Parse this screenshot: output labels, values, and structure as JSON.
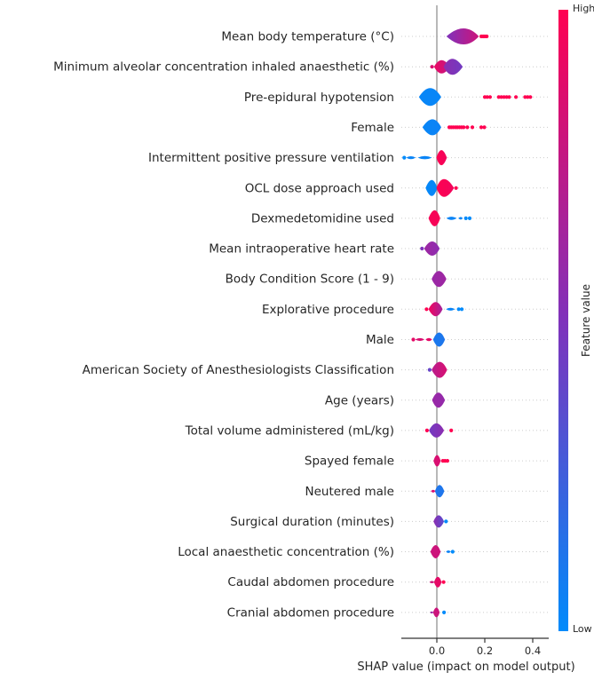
{
  "chart_data": {
    "type": "beeswarm",
    "title": "",
    "xlabel": "SHAP value (impact on model output)",
    "x_ticks": [
      0.0,
      0.2,
      0.4
    ],
    "x_tick_labels": [
      "0.0",
      "0.2",
      "0.4"
    ],
    "xlim": [
      -0.16,
      0.47
    ],
    "grid": "dotted-horizontal",
    "zero_line": true,
    "colorbar": {
      "label": "Feature value",
      "high_label": "High",
      "low_label": "Low",
      "high_color": "#ff0051",
      "mid_color": "#7f32bb",
      "low_color": "#008bfb"
    },
    "features": [
      {
        "label": "Mean body temperature (°C)",
        "segments": [
          {
            "x0": 0.04,
            "x1": 0.175,
            "peak": 0.115,
            "h": 9,
            "t0": 0.5,
            "t1": 0.8
          }
        ],
        "points": [
          {
            "x": 0.185,
            "t": 1
          },
          {
            "x": 0.193,
            "t": 1
          },
          {
            "x": 0.2,
            "t": 1
          },
          {
            "x": 0.208,
            "t": 1
          }
        ]
      },
      {
        "label": "Minimum alveolar concentration inhaled anaesthetic (%)",
        "segments": [
          {
            "x0": -0.012,
            "x1": 0.055,
            "peak": 0.018,
            "h": 7.5,
            "t0": 0.92,
            "t1": 0.75
          },
          {
            "x0": 0.028,
            "x1": 0.108,
            "peak": 0.062,
            "h": 9,
            "t0": 0.55,
            "t1": 0.45
          }
        ],
        "points": [
          {
            "x": -0.02,
            "t": 0.85
          }
        ]
      },
      {
        "label": "Pre-epidural hypotension",
        "segments": [
          {
            "x0": -0.075,
            "x1": 0.018,
            "peak": -0.027,
            "h": 10,
            "t0": 0.03,
            "t1": 0.03
          }
        ],
        "points": [
          {
            "x": 0.2,
            "t": 1
          },
          {
            "x": 0.21,
            "t": 1
          },
          {
            "x": 0.222,
            "t": 1
          },
          {
            "x": 0.258,
            "t": 1
          },
          {
            "x": 0.269,
            "t": 1
          },
          {
            "x": 0.28,
            "t": 1
          },
          {
            "x": 0.291,
            "t": 1
          },
          {
            "x": 0.302,
            "t": 1
          },
          {
            "x": 0.33,
            "t": 1
          },
          {
            "x": 0.368,
            "t": 1
          },
          {
            "x": 0.379,
            "t": 1
          },
          {
            "x": 0.39,
            "t": 1
          }
        ]
      },
      {
        "label": "Female",
        "segments": [
          {
            "x0": -0.06,
            "x1": 0.018,
            "peak": -0.016,
            "h": 9,
            "t0": 0.03,
            "t1": 0.05
          }
        ],
        "points": [
          {
            "x": 0.052,
            "t": 1
          },
          {
            "x": 0.06,
            "t": 1
          },
          {
            "x": 0.068,
            "t": 1
          },
          {
            "x": 0.077,
            "t": 1
          },
          {
            "x": 0.085,
            "t": 1
          },
          {
            "x": 0.094,
            "t": 1
          },
          {
            "x": 0.103,
            "t": 1
          },
          {
            "x": 0.112,
            "t": 1
          },
          {
            "x": 0.127,
            "t": 1
          },
          {
            "x": 0.148,
            "t": 1
          },
          {
            "x": 0.185,
            "t": 1
          },
          {
            "x": 0.198,
            "t": 1
          }
        ]
      },
      {
        "label": "Intermittent positive pressure ventilation",
        "segments": [
          {
            "x0": -0.002,
            "x1": 0.042,
            "peak": 0.018,
            "h": 8.5,
            "t0": 1,
            "t1": 0.95
          },
          {
            "x0": -0.128,
            "x1": -0.088,
            "peak": -0.108,
            "h": 1.6,
            "t0": 0.04,
            "t1": 0.04
          },
          {
            "x0": -0.08,
            "x1": -0.02,
            "peak": -0.05,
            "h": 1.8,
            "t0": 0.04,
            "t1": 0.04
          }
        ],
        "points": [
          {
            "x": -0.136,
            "t": 0
          }
        ]
      },
      {
        "label": "OCL dose approach used",
        "segments": [
          {
            "x0": -0.047,
            "x1": 0.002,
            "peak": -0.02,
            "h": 9,
            "t0": 0.02,
            "t1": 0.02
          },
          {
            "x0": -0.002,
            "x1": 0.072,
            "peak": 0.026,
            "h": 10,
            "t0": 1,
            "t1": 0.95
          }
        ],
        "points": [
          {
            "x": 0.08,
            "t": 1
          }
        ]
      },
      {
        "label": "Dexmedetomidine used",
        "segments": [
          {
            "x0": -0.035,
            "x1": 0.014,
            "peak": -0.008,
            "h": 9,
            "t0": 0.97,
            "t1": 0.97
          },
          {
            "x0": 0.04,
            "x1": 0.083,
            "peak": 0.06,
            "h": 1.8,
            "t0": 0.04,
            "t1": 0.04
          },
          {
            "x0": 0.09,
            "x1": 0.108,
            "peak": 0.1,
            "h": 1.5,
            "t0": 0.04,
            "t1": 0.04
          }
        ],
        "points": [
          {
            "x": 0.121,
            "t": 0
          },
          {
            "x": 0.137,
            "t": 0
          }
        ]
      },
      {
        "label": "Mean intraoperative heart rate",
        "segments": [
          {
            "x0": -0.053,
            "x1": 0.012,
            "peak": -0.018,
            "h": 8,
            "t0": 0.62,
            "t1": 0.55
          }
        ],
        "points": [
          {
            "x": -0.062,
            "t": 0.5
          }
        ]
      },
      {
        "label": "Body Condition Score (1 - 9)",
        "segments": [
          {
            "x0": -0.022,
            "x1": 0.04,
            "peak": 0.008,
            "h": 9,
            "t0": 0.6,
            "t1": 0.62
          }
        ],
        "points": []
      },
      {
        "label": "Explorative procedure",
        "segments": [
          {
            "x0": -0.035,
            "x1": 0.024,
            "peak": -0.004,
            "h": 8,
            "t0": 0.95,
            "t1": 0.65
          },
          {
            "x0": 0.038,
            "x1": 0.076,
            "peak": 0.056,
            "h": 1.6,
            "t0": 0.04,
            "t1": 0.04
          }
        ],
        "points": [
          {
            "x": 0.091,
            "t": 0
          },
          {
            "x": 0.104,
            "t": 0
          },
          {
            "x": -0.043,
            "t": 1
          }
        ]
      },
      {
        "label": "Male",
        "segments": [
          {
            "x0": -0.016,
            "x1": 0.034,
            "peak": 0.01,
            "h": 8,
            "t0": 0.1,
            "t1": 0.12
          },
          {
            "x0": -0.09,
            "x1": -0.052,
            "peak": -0.07,
            "h": 1.6,
            "t0": 0.85,
            "t1": 0.85
          },
          {
            "x0": -0.047,
            "x1": -0.02,
            "peak": -0.033,
            "h": 1.8,
            "t0": 0.9,
            "t1": 0.9
          }
        ],
        "points": [
          {
            "x": -0.098,
            "t": 0.9
          }
        ]
      },
      {
        "label": "American Society of Anesthesiologists Classification",
        "segments": [
          {
            "x0": -0.022,
            "x1": 0.043,
            "peak": 0.013,
            "h": 9,
            "t0": 0.72,
            "t1": 0.85
          }
        ],
        "points": [
          {
            "x": -0.03,
            "t": 0.4
          }
        ]
      },
      {
        "label": "Age (years)",
        "segments": [
          {
            "x0": -0.02,
            "x1": 0.034,
            "peak": 0.006,
            "h": 8.5,
            "t0": 0.6,
            "t1": 0.58
          }
        ],
        "points": []
      },
      {
        "label": "Total volume administered (mL/kg)",
        "segments": [
          {
            "x0": -0.033,
            "x1": 0.03,
            "peak": -0.002,
            "h": 8,
            "t0": 0.45,
            "t1": 0.55
          }
        ],
        "points": [
          {
            "x": 0.06,
            "t": 1
          },
          {
            "x": -0.041,
            "t": 1
          }
        ]
      },
      {
        "label": "Spayed female",
        "segments": [
          {
            "x0": -0.014,
            "x1": 0.016,
            "peak": 0.001,
            "h": 6.5,
            "t0": 0.85,
            "t1": 0.85
          }
        ],
        "points": [
          {
            "x": 0.025,
            "t": 1
          },
          {
            "x": 0.034,
            "t": 1
          },
          {
            "x": 0.044,
            "t": 1
          }
        ]
      },
      {
        "label": "Neutered male",
        "segments": [
          {
            "x0": -0.008,
            "x1": 0.031,
            "peak": 0.011,
            "h": 7,
            "t0": 0.12,
            "t1": 0.12
          },
          {
            "x0": -0.025,
            "x1": -0.006,
            "peak": -0.015,
            "h": 1.6,
            "t0": 0.85,
            "t1": 0.85
          }
        ],
        "points": []
      },
      {
        "label": "Surgical duration (minutes)",
        "segments": [
          {
            "x0": -0.014,
            "x1": 0.03,
            "peak": 0.007,
            "h": 7,
            "t0": 0.55,
            "t1": 0.35
          }
        ],
        "points": [
          {
            "x": 0.038,
            "t": 0
          }
        ]
      },
      {
        "label": "Local anaesthetic concentration (%)",
        "segments": [
          {
            "x0": -0.027,
            "x1": 0.016,
            "peak": -0.004,
            "h": 7.5,
            "t0": 0.8,
            "t1": 0.8
          },
          {
            "x0": 0.038,
            "x1": 0.058,
            "peak": 0.048,
            "h": 1.5,
            "t0": 0.05,
            "t1": 0.05
          }
        ],
        "points": [
          {
            "x": 0.066,
            "t": 0
          }
        ]
      },
      {
        "label": "Caudal abdomen procedure",
        "segments": [
          {
            "x0": -0.012,
            "x1": 0.02,
            "peak": 0.004,
            "h": 6,
            "t0": 0.9,
            "t1": 0.9
          },
          {
            "x0": -0.031,
            "x1": -0.01,
            "peak": -0.02,
            "h": 1.3,
            "t0": 0.8,
            "t1": 0.8
          }
        ],
        "points": [
          {
            "x": 0.028,
            "t": 1
          }
        ]
      },
      {
        "label": "Cranial abdomen procedure",
        "segments": [
          {
            "x0": -0.016,
            "x1": 0.012,
            "peak": -0.001,
            "h": 5.5,
            "t0": 0.8,
            "t1": 0.8
          },
          {
            "x0": -0.029,
            "x1": -0.014,
            "peak": -0.021,
            "h": 1.2,
            "t0": 0.6,
            "t1": 0.6
          }
        ],
        "points": [
          {
            "x": 0.03,
            "t": 0
          }
        ]
      }
    ]
  }
}
